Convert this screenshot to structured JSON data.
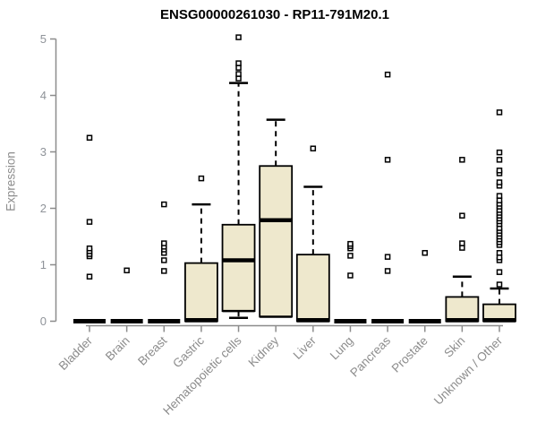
{
  "colors": {
    "background": "#ffffff",
    "box_fill": "#EEE8CD",
    "box_border": "#000000",
    "median": "#000000",
    "whisker": "#000000",
    "outlier_stroke": "#000000",
    "outlier_fill": "#ffffff",
    "axis": "#8c8c8c",
    "tick_label": "#8f9399",
    "title": "#000000"
  },
  "chart_data": {
    "type": "boxplot",
    "title": "ENSG00000261030 - RP11-791M20.1",
    "xlabel": "",
    "ylabel": "Expression",
    "ylim": [
      0,
      5
    ],
    "yticks": [
      0,
      1,
      2,
      3,
      4,
      5
    ],
    "grid": "off",
    "legend": "none",
    "categories": [
      "Bladder",
      "Brain",
      "Breast",
      "Gastric",
      "Hematopoietic cells",
      "Kidney",
      "Liver",
      "Lung",
      "Pancreas",
      "Prostate",
      "Skin",
      "Unknown / Other"
    ],
    "series": [
      {
        "name": "Bladder",
        "q1": 0,
        "median": 0,
        "q3": 0.03,
        "whisker_low": 0,
        "whisker_high": 0.03,
        "outliers": [
          0.79,
          1.15,
          1.19,
          1.24,
          1.29,
          1.76,
          3.25
        ]
      },
      {
        "name": "Brain",
        "q1": 0,
        "median": 0,
        "q3": 0.03,
        "whisker_low": 0,
        "whisker_high": 0.03,
        "outliers": [
          0.9
        ]
      },
      {
        "name": "Breast",
        "q1": 0,
        "median": 0,
        "q3": 0.03,
        "whisker_low": 0,
        "whisker_high": 0.03,
        "outliers": [
          0.89,
          1.08,
          1.21,
          1.27,
          1.32,
          1.38,
          2.07
        ]
      },
      {
        "name": "Gastric",
        "q1": 0,
        "median": 0.02,
        "q3": 1.03,
        "whisker_low": 0,
        "whisker_high": 2.07,
        "outliers": [
          2.53
        ]
      },
      {
        "name": "Hematopoietic cells",
        "q1": 0.18,
        "median": 1.08,
        "q3": 1.71,
        "whisker_low": 0.06,
        "whisker_high": 4.22,
        "outliers": [
          4.3,
          4.38,
          4.49,
          4.57,
          5.03
        ]
      },
      {
        "name": "Kidney",
        "q1": 0.08,
        "median": 1.79,
        "q3": 2.75,
        "whisker_low": 0.08,
        "whisker_high": 3.57,
        "outliers": []
      },
      {
        "name": "Liver",
        "q1": 0,
        "median": 0.02,
        "q3": 1.18,
        "whisker_low": 0,
        "whisker_high": 2.38,
        "outliers": [
          3.06
        ]
      },
      {
        "name": "Lung",
        "q1": 0,
        "median": 0,
        "q3": 0.03,
        "whisker_low": 0,
        "whisker_high": 0.03,
        "outliers": [
          0.81,
          1.16,
          1.29,
          1.33,
          1.37
        ]
      },
      {
        "name": "Pancreas",
        "q1": 0,
        "median": 0,
        "q3": 0.03,
        "whisker_low": 0,
        "whisker_high": 0.03,
        "outliers": [
          0.89,
          1.14,
          2.86,
          4.37
        ]
      },
      {
        "name": "Prostate",
        "q1": 0,
        "median": 0,
        "q3": 0.03,
        "whisker_low": 0,
        "whisker_high": 0.03,
        "outliers": [
          1.21
        ]
      },
      {
        "name": "Skin",
        "q1": 0,
        "median": 0.02,
        "q3": 0.43,
        "whisker_low": 0,
        "whisker_high": 0.79,
        "outliers": [
          1.3,
          1.38,
          1.87,
          2.86
        ]
      },
      {
        "name": "Unknown / Other",
        "q1": 0,
        "median": 0.02,
        "q3": 0.3,
        "whisker_low": 0,
        "whisker_high": 0.58,
        "outliers": [
          0.65,
          0.87,
          1.08,
          1.13,
          1.21,
          1.35,
          1.4,
          1.45,
          1.5,
          1.55,
          1.6,
          1.65,
          1.72,
          1.77,
          1.82,
          1.87,
          1.92,
          1.97,
          2.03,
          2.08,
          2.14,
          2.22,
          2.4,
          2.46,
          2.62,
          2.67,
          2.86,
          2.99,
          3.7
        ]
      }
    ]
  }
}
